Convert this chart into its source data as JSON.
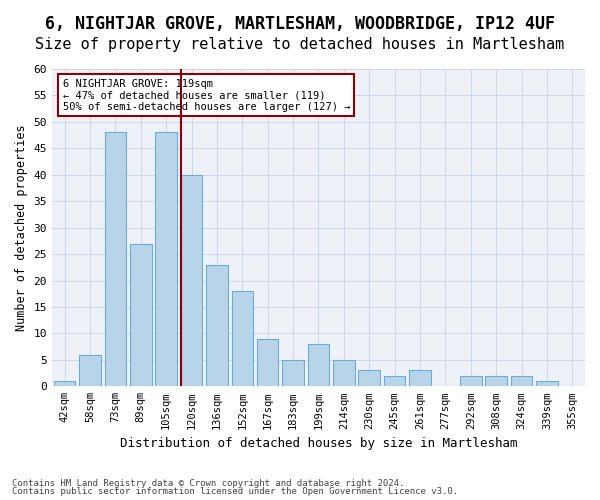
{
  "title_line1": "6, NIGHTJAR GROVE, MARTLESHAM, WOODBRIDGE, IP12 4UF",
  "title_line2": "Size of property relative to detached houses in Martlesham",
  "xlabel": "Distribution of detached houses by size in Martlesham",
  "ylabel": "Number of detached properties",
  "footnote1": "Contains HM Land Registry data © Crown copyright and database right 2024.",
  "footnote2": "Contains public sector information licensed under the Open Government Licence v3.0.",
  "categories": [
    "42sqm",
    "58sqm",
    "73sqm",
    "89sqm",
    "105sqm",
    "120sqm",
    "136sqm",
    "152sqm",
    "167sqm",
    "183sqm",
    "199sqm",
    "214sqm",
    "230sqm",
    "245sqm",
    "261sqm",
    "277sqm",
    "292sqm",
    "308sqm",
    "324sqm",
    "339sqm",
    "355sqm"
  ],
  "values": [
    1,
    6,
    48,
    27,
    48,
    40,
    23,
    18,
    9,
    5,
    8,
    5,
    3,
    2,
    3,
    0,
    2,
    2,
    2,
    1,
    0
  ],
  "bar_color": "#b8d4e8",
  "bar_edge_color": "#6aaed6",
  "vline_x_index": 5,
  "vline_color": "#8b0000",
  "annotation_box_text": "6 NIGHTJAR GROVE: 119sqm\n← 47% of detached houses are smaller (119)\n50% of semi-detached houses are larger (127) →",
  "annotation_box_color": "#8b0000",
  "annotation_fill": "white",
  "ylim": [
    0,
    60
  ],
  "yticks": [
    0,
    5,
    10,
    15,
    20,
    25,
    30,
    35,
    40,
    45,
    50,
    55,
    60
  ],
  "grid_color": "#d0d8e8",
  "background_color": "#eef2f8",
  "title1_fontsize": 12,
  "title2_fontsize": 11,
  "xlabel_fontsize": 9,
  "ylabel_fontsize": 8.5
}
